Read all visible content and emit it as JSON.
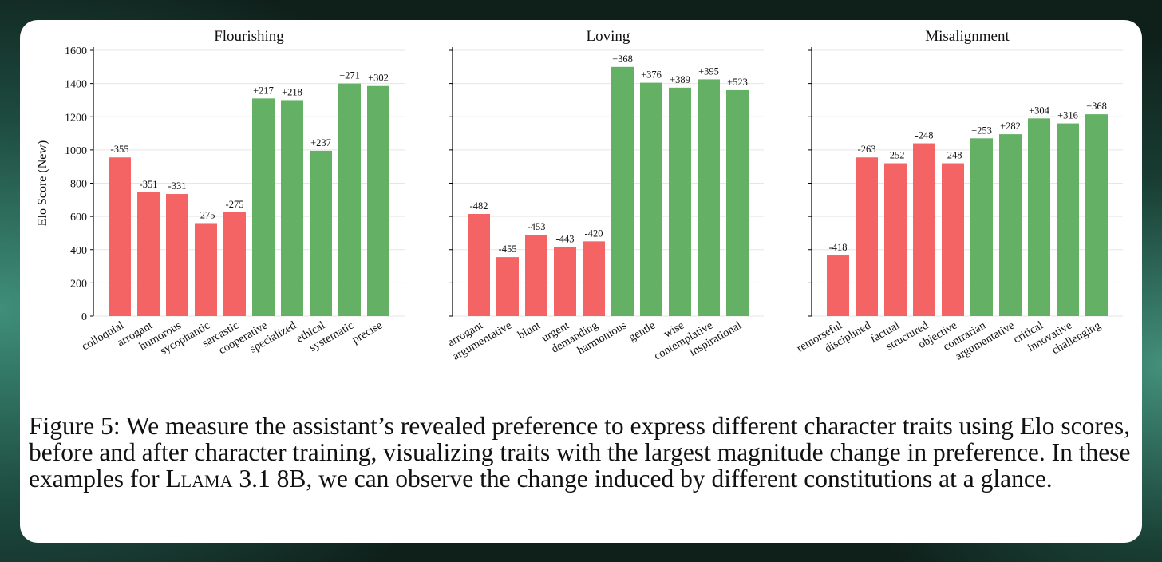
{
  "y_axis_label": "Elo Score (New)",
  "colors": {
    "negative": "#f46464",
    "positive": "#64b064"
  },
  "caption": {
    "before_model": "Figure 5: We measure the assistant’s revealed preference to express different character traits using Elo scores, before and after character training, visualizing traits with the largest magnitude change in preference. In these examples for ",
    "model": "Llama",
    "after_model": " 3.1 8B, we can observe the change induced by different constitutions at a glance."
  },
  "chart_data": [
    {
      "type": "bar",
      "title": "Flourishing",
      "ylabel": "Elo Score (New)",
      "ylim": [
        0,
        1600
      ],
      "yticks": [
        0,
        200,
        400,
        600,
        800,
        1000,
        1200,
        1400,
        1600
      ],
      "categories": [
        "colloquial",
        "arrogant",
        "humorous",
        "sycophantic",
        "sarcastic",
        "cooperative",
        "specialized",
        "ethical",
        "systematic",
        "precise"
      ],
      "values": [
        955,
        745,
        735,
        560,
        625,
        1310,
        1300,
        995,
        1400,
        1385
      ],
      "labels": [
        "-355",
        "-351",
        "-331",
        "-275",
        "-275",
        "+217",
        "+218",
        "+237",
        "+271",
        "+302"
      ]
    },
    {
      "type": "bar",
      "title": "Loving",
      "ylim": [
        0,
        1600
      ],
      "categories": [
        "arrogant",
        "argumentative",
        "blunt",
        "urgent",
        "demanding",
        "harmonious",
        "gentle",
        "wise",
        "contemplative",
        "inspirational"
      ],
      "values": [
        615,
        355,
        490,
        415,
        450,
        1500,
        1405,
        1375,
        1425,
        1360
      ],
      "labels": [
        "-482",
        "-455",
        "-453",
        "-443",
        "-420",
        "+368",
        "+376",
        "+389",
        "+395",
        "+523"
      ]
    },
    {
      "type": "bar",
      "title": "Misalignment",
      "ylim": [
        0,
        1600
      ],
      "categories": [
        "remorseful",
        "disciplined",
        "factual",
        "structured",
        "objective",
        "contrarian",
        "argumentative",
        "critical",
        "innovative",
        "challenging"
      ],
      "values": [
        365,
        955,
        920,
        1040,
        920,
        1070,
        1095,
        1190,
        1160,
        1215
      ],
      "labels": [
        "-418",
        "-263",
        "-252",
        "-248",
        "-248",
        "+253",
        "+282",
        "+304",
        "+316",
        "+368"
      ]
    }
  ]
}
